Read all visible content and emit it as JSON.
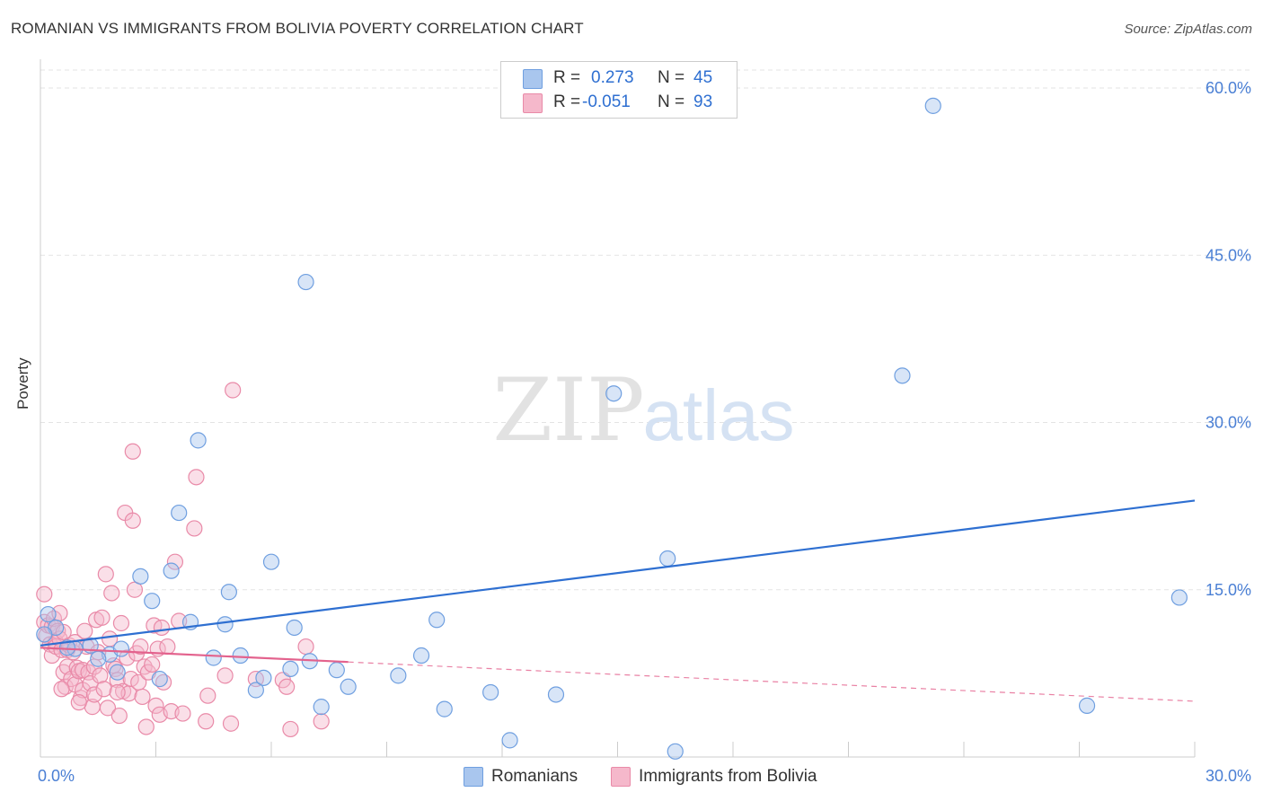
{
  "title": "ROMANIAN VS IMMIGRANTS FROM BOLIVIA POVERTY CORRELATION CHART",
  "source": "Source: ZipAtlas.com",
  "watermark": {
    "zip": "ZIP",
    "atlas": "atlas"
  },
  "legend": {
    "r_label": "R =",
    "n_label": "N =",
    "series": [
      {
        "r": "0.273",
        "n": "45"
      },
      {
        "r": "-0.051",
        "n": "93"
      }
    ]
  },
  "bottom_legend": [
    "Romanians",
    "Immigrants from Bolivia"
  ],
  "colors": {
    "blue_fill": "#a9c6ee",
    "blue_stroke": "#6f9fe0",
    "blue_line": "#2e6fd1",
    "pink_fill": "#f5b8cb",
    "pink_stroke": "#e98aa8",
    "pink_line": "#e3628d",
    "grid": "#e3e3e3",
    "axis_text": "#4a7fd4"
  },
  "chart_data": {
    "type": "scatter",
    "title": "ROMANIAN VS IMMIGRANTS FROM BOLIVIA POVERTY CORRELATION CHART",
    "xlabel": "",
    "ylabel": "Poverty",
    "xlim": [
      0,
      30
    ],
    "ylim": [
      0,
      60
    ],
    "x_tick_labels": [
      "0.0%",
      "30.0%"
    ],
    "y_ticks": [
      15,
      30,
      45,
      60
    ],
    "y_tick_labels": [
      "15.0%",
      "30.0%",
      "45.0%",
      "60.0%"
    ],
    "series": [
      {
        "name": "Romanians",
        "r": 0.273,
        "n": 45,
        "trend": {
          "x0": 0,
          "y0": 10.0,
          "x1": 30,
          "y1": 23.0,
          "dashed_from": null
        },
        "points": [
          [
            0.2,
            12.8
          ],
          [
            0.4,
            11.6
          ],
          [
            0.9,
            9.7
          ],
          [
            1.3,
            10.0
          ],
          [
            1.8,
            9.2
          ],
          [
            2.0,
            7.6
          ],
          [
            2.1,
            9.7
          ],
          [
            2.6,
            16.2
          ],
          [
            2.9,
            14.0
          ],
          [
            3.1,
            7.0
          ],
          [
            3.4,
            16.7
          ],
          [
            3.6,
            21.9
          ],
          [
            3.9,
            12.1
          ],
          [
            4.1,
            28.4
          ],
          [
            4.5,
            8.9
          ],
          [
            4.8,
            11.9
          ],
          [
            4.9,
            14.8
          ],
          [
            5.2,
            9.1
          ],
          [
            5.6,
            6.0
          ],
          [
            5.8,
            7.1
          ],
          [
            6.0,
            17.5
          ],
          [
            6.5,
            7.9
          ],
          [
            6.6,
            11.6
          ],
          [
            6.9,
            42.6
          ],
          [
            7.0,
            8.6
          ],
          [
            7.3,
            4.5
          ],
          [
            7.7,
            7.8
          ],
          [
            8.0,
            6.3
          ],
          [
            9.3,
            7.3
          ],
          [
            9.9,
            9.1
          ],
          [
            10.3,
            12.3
          ],
          [
            10.5,
            4.3
          ],
          [
            11.7,
            5.8
          ],
          [
            12.2,
            1.5
          ],
          [
            13.4,
            5.6
          ],
          [
            14.9,
            32.6
          ],
          [
            16.3,
            17.8
          ],
          [
            16.5,
            0.5
          ],
          [
            22.4,
            34.2
          ],
          [
            23.2,
            58.4
          ],
          [
            27.2,
            4.6
          ],
          [
            29.6,
            14.3
          ],
          [
            0.1,
            11.0
          ],
          [
            0.7,
            9.8
          ],
          [
            1.5,
            8.8
          ]
        ]
      },
      {
        "name": "Immigrants from Bolivia",
        "r": -0.051,
        "n": 93,
        "trend": {
          "x0": 0,
          "y0": 9.8,
          "x1": 30,
          "y1": 5.0,
          "dashed_from": 8.0
        },
        "points": [
          [
            0.1,
            14.6
          ],
          [
            0.1,
            12.1
          ],
          [
            0.15,
            10.9
          ],
          [
            0.2,
            11.8
          ],
          [
            0.25,
            10.1
          ],
          [
            0.3,
            11.7
          ],
          [
            0.3,
            9.1
          ],
          [
            0.35,
            12.4
          ],
          [
            0.4,
            10.3
          ],
          [
            0.4,
            9.9
          ],
          [
            0.45,
            11.3
          ],
          [
            0.5,
            12.9
          ],
          [
            0.5,
            10.6
          ],
          [
            0.55,
            9.6
          ],
          [
            0.6,
            11.2
          ],
          [
            0.6,
            7.6
          ],
          [
            0.65,
            6.3
          ],
          [
            0.7,
            9.6
          ],
          [
            0.7,
            8.1
          ],
          [
            0.75,
            10.0
          ],
          [
            0.8,
            7.0
          ],
          [
            0.85,
            9.4
          ],
          [
            0.9,
            10.3
          ],
          [
            0.9,
            6.5
          ],
          [
            0.95,
            8.0
          ],
          [
            1.0,
            7.7
          ],
          [
            1.05,
            5.3
          ],
          [
            1.1,
            7.8
          ],
          [
            1.1,
            6.0
          ],
          [
            1.15,
            11.3
          ],
          [
            1.2,
            9.9
          ],
          [
            1.25,
            7.6
          ],
          [
            1.3,
            6.6
          ],
          [
            1.35,
            4.5
          ],
          [
            1.4,
            8.1
          ],
          [
            1.4,
            5.6
          ],
          [
            1.45,
            12.3
          ],
          [
            1.5,
            9.4
          ],
          [
            1.55,
            7.3
          ],
          [
            1.6,
            12.5
          ],
          [
            1.65,
            6.1
          ],
          [
            1.7,
            16.4
          ],
          [
            1.75,
            4.4
          ],
          [
            1.8,
            10.6
          ],
          [
            1.85,
            14.7
          ],
          [
            1.9,
            8.2
          ],
          [
            1.95,
            7.9
          ],
          [
            2.0,
            6.9
          ],
          [
            2.05,
            3.7
          ],
          [
            2.1,
            12.0
          ],
          [
            2.15,
            5.9
          ],
          [
            2.2,
            21.9
          ],
          [
            2.25,
            8.9
          ],
          [
            2.3,
            5.7
          ],
          [
            2.35,
            7.0
          ],
          [
            2.4,
            27.4
          ],
          [
            2.4,
            21.2
          ],
          [
            2.45,
            15.0
          ],
          [
            2.5,
            9.3
          ],
          [
            2.55,
            6.7
          ],
          [
            2.6,
            9.9
          ],
          [
            2.65,
            5.4
          ],
          [
            2.7,
            8.1
          ],
          [
            2.75,
            2.7
          ],
          [
            2.8,
            7.6
          ],
          [
            2.9,
            8.3
          ],
          [
            2.95,
            11.8
          ],
          [
            3.0,
            4.6
          ],
          [
            3.05,
            9.7
          ],
          [
            3.1,
            3.8
          ],
          [
            3.15,
            11.6
          ],
          [
            3.2,
            6.7
          ],
          [
            3.3,
            9.9
          ],
          [
            3.4,
            4.1
          ],
          [
            3.5,
            17.5
          ],
          [
            3.6,
            12.2
          ],
          [
            3.7,
            3.9
          ],
          [
            4.0,
            20.5
          ],
          [
            4.05,
            25.1
          ],
          [
            4.3,
            3.2
          ],
          [
            4.35,
            5.5
          ],
          [
            4.8,
            7.3
          ],
          [
            4.95,
            3.0
          ],
          [
            5.0,
            32.9
          ],
          [
            5.6,
            7.0
          ],
          [
            6.3,
            6.9
          ],
          [
            6.4,
            6.3
          ],
          [
            6.5,
            2.5
          ],
          [
            6.9,
            9.9
          ],
          [
            7.3,
            3.2
          ],
          [
            0.55,
            6.1
          ],
          [
            1.0,
            4.9
          ],
          [
            2.0,
            5.8
          ]
        ]
      }
    ]
  }
}
